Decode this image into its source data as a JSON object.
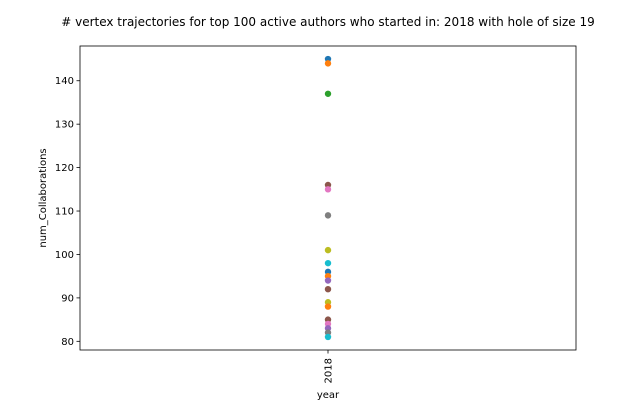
{
  "chart_data": {
    "type": "scatter",
    "title": "# vertex trajectories for top 100 active authors who started in: 2018 with hole of size 19",
    "xlabel": "year",
    "ylabel": "num_Collaborations",
    "categories": [
      "2018"
    ],
    "yticks": [
      80,
      90,
      100,
      110,
      120,
      130,
      140
    ],
    "ylim": [
      78,
      148
    ],
    "grid": false,
    "legend": "none",
    "points": [
      {
        "x": "2018",
        "y": 145,
        "color": "#1f77b4"
      },
      {
        "x": "2018",
        "y": 144,
        "color": "#ff7f0e"
      },
      {
        "x": "2018",
        "y": 137,
        "color": "#2ca02c"
      },
      {
        "x": "2018",
        "y": 116,
        "color": "#8c564b"
      },
      {
        "x": "2018",
        "y": 115,
        "color": "#e377c2"
      },
      {
        "x": "2018",
        "y": 109,
        "color": "#7f7f7f"
      },
      {
        "x": "2018",
        "y": 101,
        "color": "#bcbd22"
      },
      {
        "x": "2018",
        "y": 98,
        "color": "#17becf"
      },
      {
        "x": "2018",
        "y": 96,
        "color": "#1f77b4"
      },
      {
        "x": "2018",
        "y": 95,
        "color": "#ff7f0e"
      },
      {
        "x": "2018",
        "y": 94,
        "color": "#9467bd"
      },
      {
        "x": "2018",
        "y": 92,
        "color": "#8c564b"
      },
      {
        "x": "2018",
        "y": 89,
        "color": "#bcbd22"
      },
      {
        "x": "2018",
        "y": 88,
        "color": "#ff7f0e"
      },
      {
        "x": "2018",
        "y": 85,
        "color": "#8c564b"
      },
      {
        "x": "2018",
        "y": 84,
        "color": "#e377c2"
      },
      {
        "x": "2018",
        "y": 83,
        "color": "#9467bd"
      },
      {
        "x": "2018",
        "y": 82,
        "color": "#7f7f7f"
      },
      {
        "x": "2018",
        "y": 81,
        "color": "#17becf"
      }
    ]
  }
}
